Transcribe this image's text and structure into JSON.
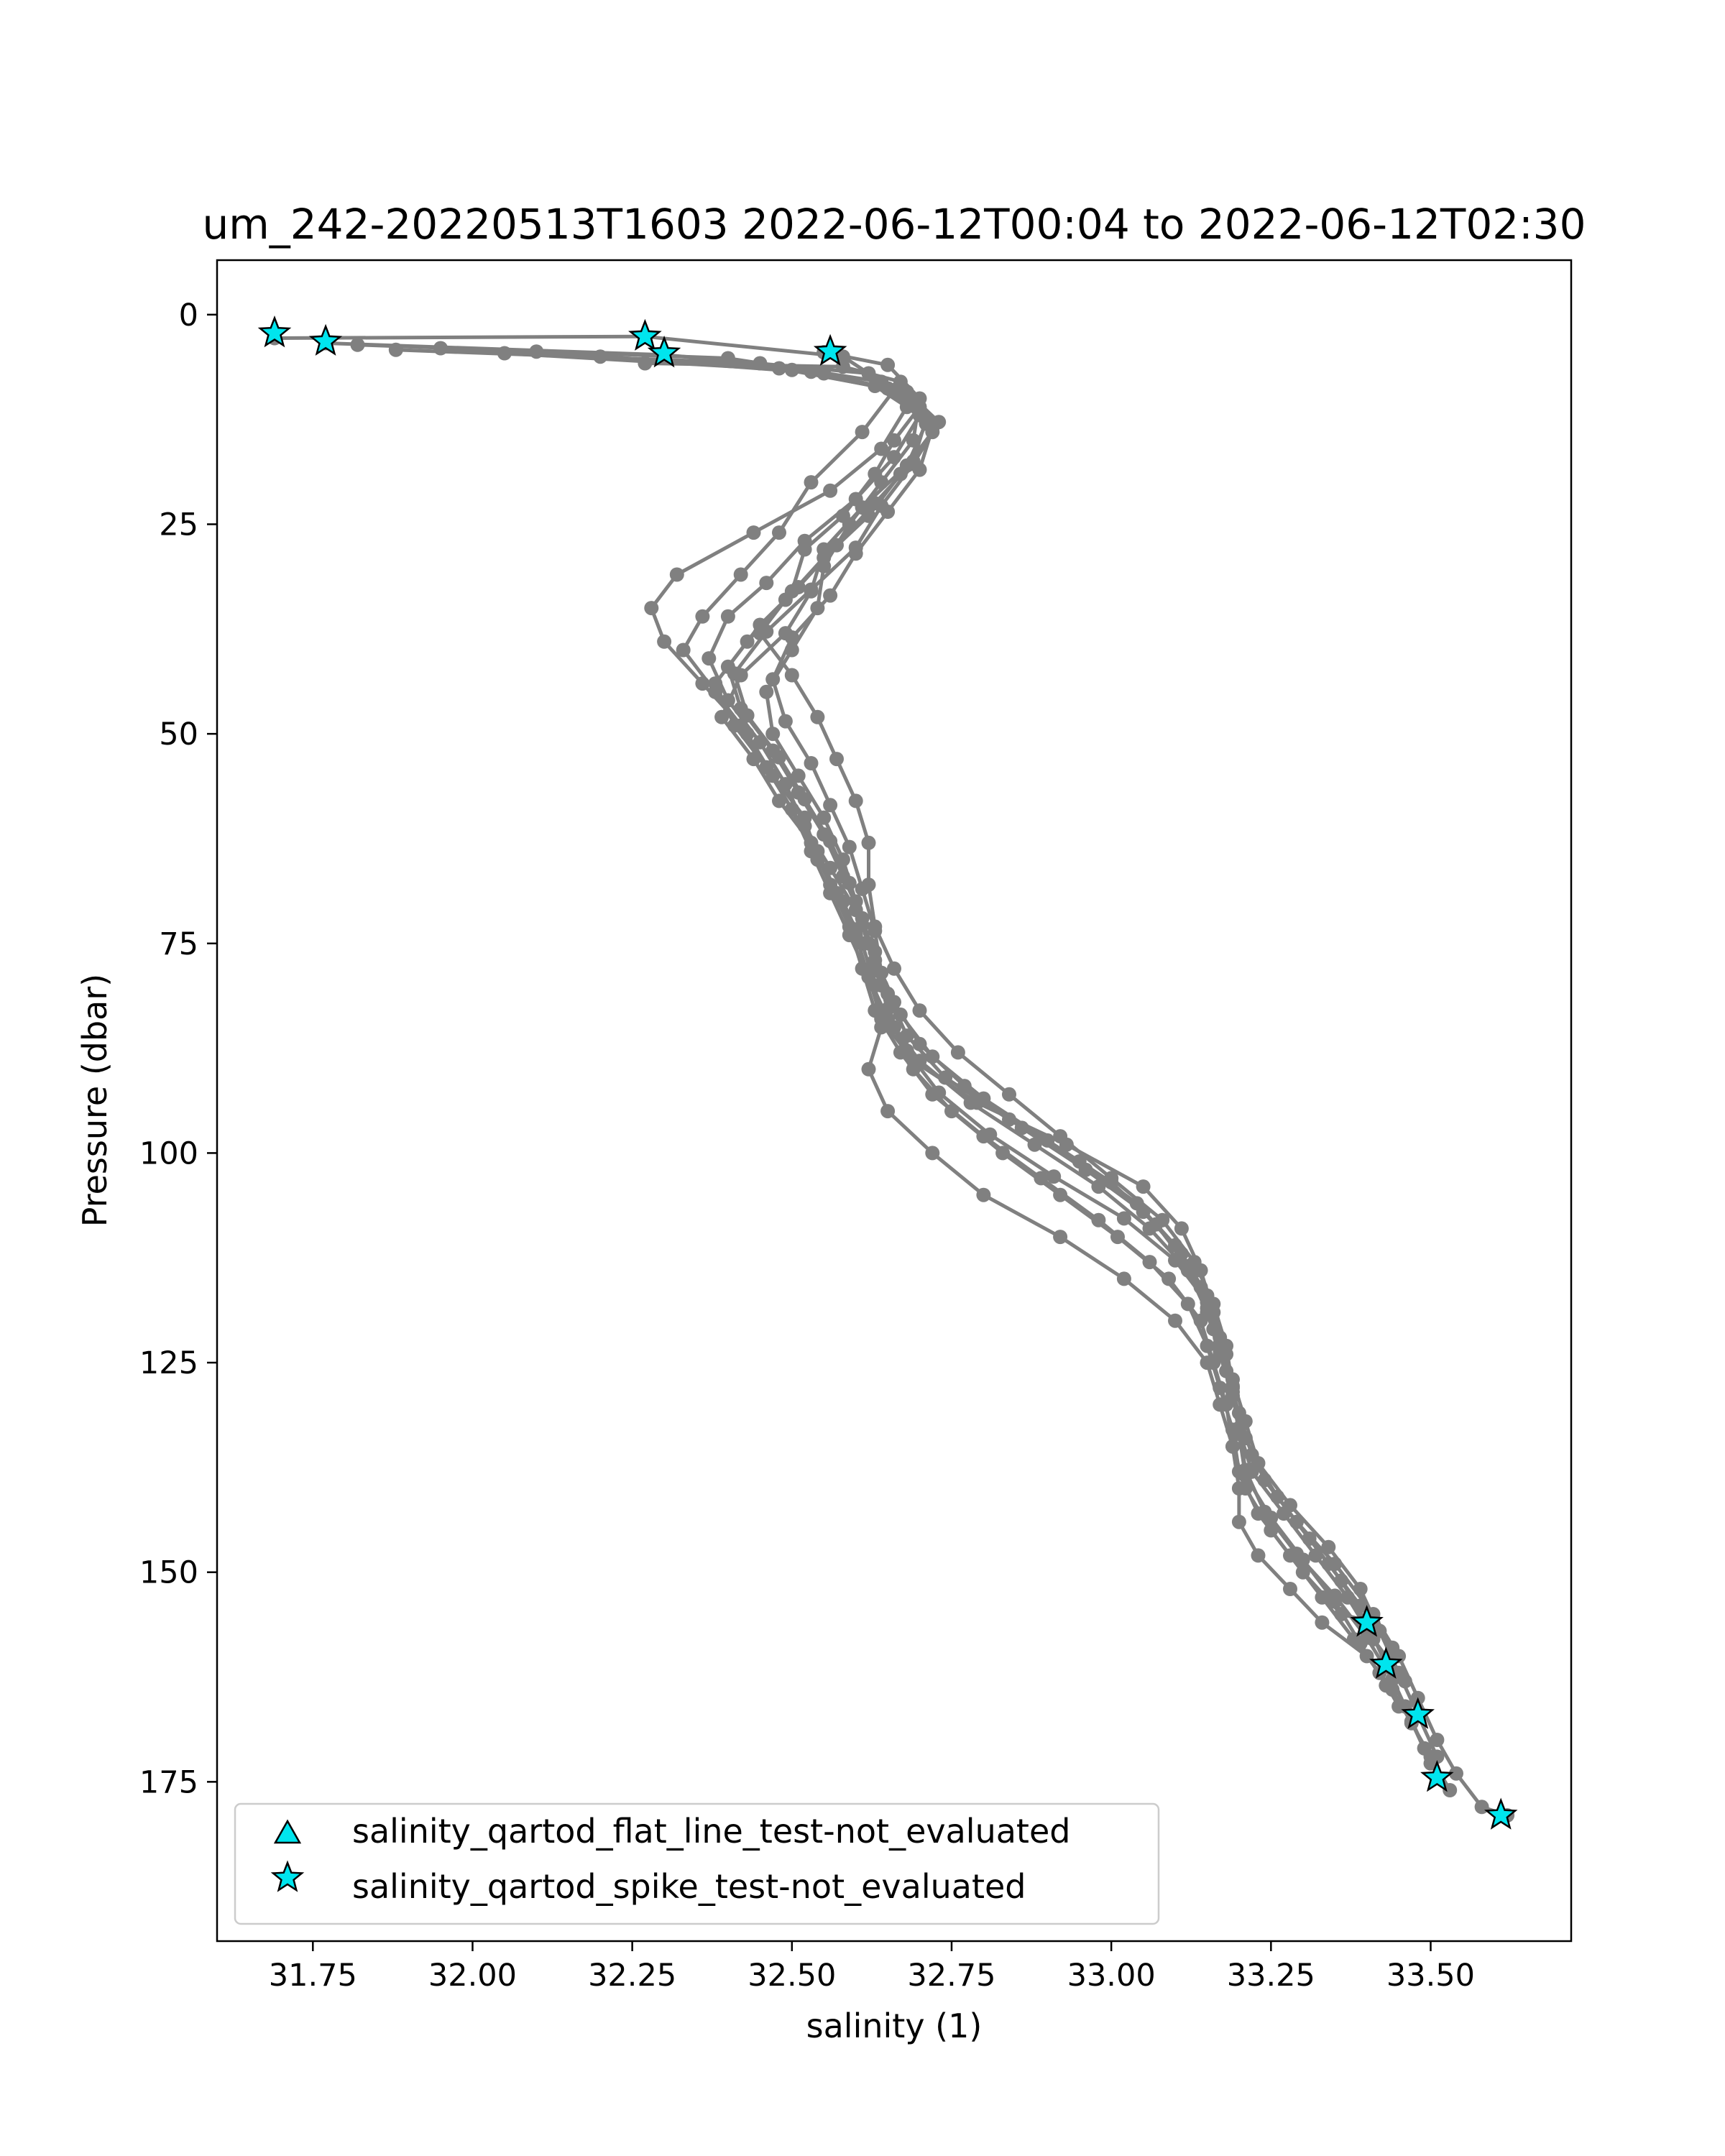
{
  "chart_data": {
    "type": "line",
    "title": "um_242-20220513T1603 2022-06-12T00:04 to 2022-06-12T02:30",
    "xlabel": "salinity (1)",
    "ylabel": "Pressure (dbar)",
    "xlim": [
      31.6,
      33.72
    ],
    "ylim": [
      194,
      -6.5
    ],
    "y_inverted": true,
    "xticks": [
      "31.75",
      "32.00",
      "32.25",
      "32.50",
      "32.75",
      "33.00",
      "33.25",
      "33.50"
    ],
    "yticks": [
      "0",
      "25",
      "50",
      "75",
      "100",
      "125",
      "150",
      "175"
    ],
    "grid": false,
    "legend_position": "lower-left",
    "colors": {
      "profile_line": "#808080",
      "marker_fill": "#00e5ee",
      "marker_edge": "#000000"
    },
    "series": [
      {
        "color": "#808080",
        "x": [
          31.69,
          32.27,
          32.58,
          32.66,
          32.61,
          32.53,
          32.48,
          32.42,
          32.36,
          32.33,
          32.38,
          32.43,
          32.47,
          32.52,
          32.54,
          32.58,
          32.61,
          32.63,
          32.64,
          32.62,
          32.65,
          32.72,
          32.8,
          32.92,
          33.02,
          33.1,
          33.15,
          33.17,
          33.19,
          33.2,
          33.2,
          33.23,
          33.28,
          33.33,
          33.4,
          33.44,
          33.47,
          33.5,
          33.53
        ],
        "y": [
          2.8,
          2.6,
          5.0,
          9.0,
          14.0,
          20.0,
          26.0,
          31.0,
          36.0,
          40.0,
          45.0,
          50.0,
          55.0,
          60.0,
          65.0,
          70.0,
          75.0,
          80.0,
          85.0,
          90.0,
          95.0,
          100.0,
          105.0,
          110.0,
          115.0,
          120.0,
          125.0,
          130.0,
          135.0,
          140.0,
          144.0,
          148.0,
          152.0,
          156.0,
          160.0,
          164.0,
          168.0,
          172.0,
          176.0
        ]
      },
      {
        "color": "#808080",
        "x": [
          31.77,
          32.3,
          32.62,
          32.68,
          32.64,
          32.56,
          32.44,
          32.32,
          32.28,
          32.3,
          32.36,
          32.42,
          32.46,
          32.5,
          32.53,
          32.56,
          32.59,
          32.62,
          32.65,
          32.7,
          32.78,
          32.88,
          32.98,
          33.06,
          33.12,
          33.15,
          33.17,
          33.19,
          33.21,
          33.24,
          33.29,
          33.35,
          33.41,
          33.45,
          33.48,
          33.51,
          33.54,
          33.58,
          33.62
        ],
        "y": [
          3.4,
          4.8,
          7.0,
          11.0,
          16.0,
          21.0,
          26.0,
          31.0,
          35.0,
          39.0,
          44.0,
          49.0,
          54.0,
          59.0,
          64.0,
          69.0,
          74.0,
          79.0,
          84.0,
          89.0,
          94.0,
          99.0,
          104.0,
          109.0,
          114.0,
          119.0,
          124.0,
          129.0,
          134.0,
          139.0,
          144.0,
          149.0,
          155.0,
          160.0,
          165.0,
          170.0,
          174.0,
          178.0,
          179.0
        ]
      },
      {
        "color": "#808080",
        "x": [
          31.82,
          32.4,
          32.64,
          32.7,
          32.66,
          32.6,
          32.52,
          32.46,
          32.4,
          32.37,
          32.4,
          32.45,
          32.49,
          32.52,
          32.56,
          32.6,
          32.63,
          32.65,
          32.68,
          32.74,
          32.84,
          32.95,
          33.04,
          33.1,
          33.14,
          33.16,
          33.18,
          33.2,
          33.22,
          33.26,
          33.31,
          33.36,
          33.4,
          33.43,
          33.46,
          33.49
        ],
        "y": [
          3.6,
          5.2,
          8.0,
          12.0,
          17.0,
          22.0,
          27.0,
          32.0,
          36.0,
          41.0,
          46.0,
          51.0,
          56.0,
          61.0,
          66.0,
          71.0,
          76.0,
          81.0,
          86.0,
          91.0,
          96.0,
          101.0,
          106.0,
          111.0,
          116.0,
          121.0,
          126.0,
          131.0,
          136.0,
          141.0,
          146.0,
          151.0,
          156.0,
          161.0,
          166.0,
          171.0
        ]
      },
      {
        "color": "#808080",
        "x": [
          31.88,
          32.45,
          32.63,
          32.71,
          32.69,
          32.63,
          32.57,
          32.51,
          32.45,
          32.4,
          32.42,
          32.47,
          32.51,
          32.55,
          32.58,
          32.61,
          32.63,
          32.66,
          32.7,
          32.77,
          32.86,
          32.96,
          33.05,
          33.11,
          33.15,
          33.17,
          33.19,
          33.21,
          33.23,
          33.28,
          33.34,
          33.39,
          33.42,
          33.45,
          33.48,
          33.51
        ],
        "y": [
          4.2,
          5.8,
          8.5,
          12.5,
          17.5,
          22.5,
          27.5,
          32.5,
          37.0,
          42.0,
          47.0,
          52.0,
          57.0,
          62.0,
          67.0,
          72.0,
          77.0,
          82.0,
          87.0,
          92.0,
          97.0,
          102.0,
          107.0,
          112.0,
          117.0,
          122.0,
          127.0,
          132.0,
          137.0,
          142.0,
          147.0,
          152.0,
          157.0,
          162.0,
          167.0,
          172.0
        ]
      },
      {
        "color": "#808080",
        "x": [
          32.27,
          32.58,
          32.67,
          32.7,
          32.66,
          32.63,
          32.58,
          32.52,
          32.5,
          32.45,
          32.5,
          32.54,
          32.57,
          32.6,
          32.62,
          32.62,
          32.63,
          32.66,
          32.7,
          32.76,
          32.84,
          32.92,
          33.0,
          33.08,
          33.13,
          33.16,
          33.18,
          33.19,
          33.2,
          33.22,
          33.27,
          33.32,
          33.37,
          33.41,
          33.46
        ],
        "y": [
          5.8,
          6.2,
          8.0,
          11.0,
          15.0,
          19.0,
          24.0,
          28.0,
          33.0,
          38.0,
          43.0,
          48.0,
          53.0,
          58.0,
          63.0,
          68.0,
          73.0,
          78.0,
          83.0,
          88.0,
          93.0,
          98.0,
          103.0,
          108.0,
          113.0,
          118.0,
          123.0,
          128.0,
          133.0,
          138.0,
          143.0,
          148.0,
          153.0,
          158.0,
          163.0
        ]
      },
      {
        "color": "#808080",
        "x": [
          32.2,
          32.55,
          32.68,
          32.72,
          32.7,
          32.65,
          32.6,
          32.56,
          32.5,
          32.47,
          32.49,
          32.53,
          32.56,
          32.59,
          32.61,
          32.63,
          32.64,
          32.67,
          32.72,
          32.8,
          32.9,
          33.0,
          33.07,
          33.12,
          33.15,
          33.17,
          33.19,
          33.2,
          33.21,
          33.25,
          33.3,
          33.35,
          33.39,
          33.43
        ],
        "y": [
          5.0,
          7.0,
          9.5,
          13.5,
          18.5,
          23.5,
          28.5,
          33.5,
          38.5,
          43.5,
          48.5,
          53.5,
          58.5,
          63.5,
          68.5,
          73.5,
          78.5,
          83.5,
          88.5,
          93.5,
          98.5,
          103.5,
          108.5,
          113.5,
          118.5,
          123.5,
          128.5,
          133.5,
          138.5,
          143.5,
          148.5,
          153.5,
          158.5,
          163.5
        ]
      },
      {
        "color": "#808080",
        "x": [
          32.05,
          32.5,
          32.66,
          32.72,
          32.67,
          32.62,
          32.55,
          32.49,
          32.43,
          32.38,
          32.41,
          32.46,
          32.5,
          32.54,
          32.57,
          32.6,
          32.62,
          32.64,
          32.69,
          32.79,
          32.93,
          33.05,
          33.11,
          33.14,
          33.16,
          33.18,
          33.19,
          33.21,
          33.24,
          33.29,
          33.34,
          33.39,
          33.44
        ],
        "y": [
          4.6,
          6.6,
          9.0,
          14.0,
          19.0,
          24.0,
          29.0,
          34.0,
          39.0,
          44.0,
          49.0,
          54.0,
          59.0,
          64.0,
          69.0,
          74.0,
          79.0,
          84.0,
          89.0,
          94.0,
          99.0,
          104.0,
          109.0,
          114.0,
          119.0,
          124.0,
          129.0,
          134.0,
          139.0,
          144.0,
          149.0,
          154.0,
          159.0
        ]
      },
      {
        "color": "#808080",
        "x": [
          32.55,
          32.65,
          32.7,
          32.69,
          32.64,
          32.59,
          32.55,
          32.54,
          32.5,
          32.46,
          32.47,
          32.51,
          32.55,
          32.58,
          32.6,
          32.62,
          32.64,
          32.66,
          32.69,
          32.75,
          32.83,
          32.92,
          33.01,
          33.09,
          33.14,
          33.16,
          33.18,
          33.19,
          33.21,
          33.25,
          33.3,
          33.36,
          33.41
        ],
        "y": [
          4.5,
          6.0,
          10.0,
          15.0,
          20.0,
          25.0,
          30.0,
          35.0,
          40.0,
          45.0,
          50.0,
          55.0,
          60.0,
          65.0,
          70.0,
          75.0,
          80.0,
          85.0,
          90.0,
          95.0,
          100.0,
          105.0,
          110.0,
          115.0,
          120.0,
          125.0,
          130.0,
          135.0,
          140.0,
          145.0,
          150.0,
          155.0,
          156.0
        ]
      },
      {
        "color": "#808080",
        "x": [
          31.95,
          32.48,
          32.65,
          32.71,
          32.68,
          32.61,
          32.55,
          32.53,
          32.49,
          32.42,
          32.39,
          32.44,
          32.48,
          32.53,
          32.56,
          32.59,
          32.61,
          32.63,
          32.67,
          32.72,
          32.8,
          32.89,
          32.98,
          33.06,
          33.12,
          33.15,
          33.17,
          33.19,
          33.2,
          33.23,
          33.28,
          33.33,
          33.38,
          33.42,
          33.45
        ],
        "y": [
          4.0,
          6.4,
          8.8,
          13.0,
          18.0,
          23.0,
          28.0,
          33.0,
          38.0,
          43.0,
          48.0,
          53.0,
          58.0,
          63.0,
          68.0,
          73.0,
          78.0,
          83.0,
          88.0,
          93.0,
          98.0,
          103.0,
          108.0,
          113.0,
          118.0,
          123.0,
          128.0,
          133.0,
          138.0,
          143.0,
          148.0,
          153.0,
          158.0,
          162.0,
          166.0
        ]
      },
      {
        "color": "#808080",
        "x": [
          32.1,
          32.53,
          32.68,
          32.73,
          32.69,
          32.64,
          32.6,
          32.53,
          32.46,
          32.41,
          32.43,
          32.48,
          32.52,
          32.56,
          32.59,
          32.61,
          32.63,
          32.65,
          32.68,
          32.73,
          32.81,
          32.91,
          33.02,
          33.1,
          33.15,
          33.17,
          33.19,
          33.2,
          33.21,
          33.24,
          33.29,
          33.35,
          33.4,
          33.44,
          33.47,
          33.5
        ],
        "y": [
          4.4,
          6.8,
          9.2,
          12.8,
          17.8,
          22.8,
          27.8,
          32.8,
          37.8,
          42.8,
          47.8,
          52.8,
          57.8,
          62.8,
          67.8,
          72.8,
          77.8,
          82.8,
          87.8,
          92.8,
          97.8,
          102.8,
          107.8,
          112.8,
          117.8,
          122.8,
          127.8,
          132.8,
          137.8,
          142.8,
          147.8,
          152.8,
          157.8,
          162.8,
          167.8,
          172.8
        ]
      }
    ],
    "flagged_points": {
      "spike_test": {
        "x": [
          31.69,
          31.77,
          32.27,
          32.3,
          32.56,
          33.4,
          33.43,
          33.48,
          33.51,
          33.61
        ],
        "y": [
          2.2,
          3.2,
          2.6,
          4.6,
          4.4,
          156.0,
          161.0,
          167.0,
          174.5,
          179.0
        ]
      },
      "flat_line_test": {
        "x": [],
        "y": []
      }
    },
    "legend": [
      {
        "label": "salinity_qartod_flat_line_test-not_evaluated",
        "marker": "triangle"
      },
      {
        "label": "salinity_qartod_spike_test-not_evaluated",
        "marker": "star"
      }
    ]
  }
}
